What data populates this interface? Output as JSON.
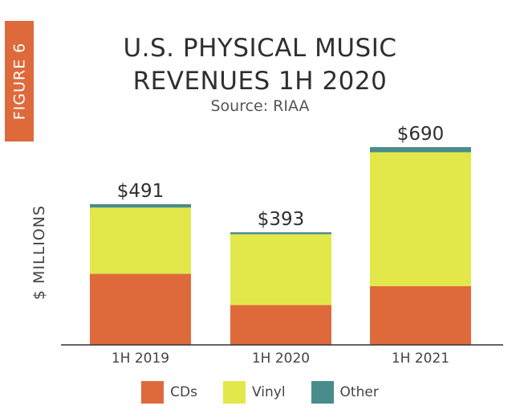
{
  "figure_label": "FIGURE 6",
  "chart_data": {
    "type": "bar",
    "stacked": true,
    "title_lines": [
      "U.S. PHYSICAL MUSIC",
      "REVENUES 1H 2020"
    ],
    "subtitle": "Source: RIAA",
    "xlabel": "",
    "ylabel": "$ MILLIONS",
    "categories": [
      "1H 2019",
      "1H 2020",
      "1H 2021"
    ],
    "totals": [
      491,
      393,
      690
    ],
    "total_labels": [
      "$491",
      "$393",
      "$690"
    ],
    "series": [
      {
        "name": "CDs",
        "values": [
          248,
          139,
          205
        ],
        "color": "#de6a3b"
      },
      {
        "name": "Vinyl",
        "values": [
          231,
          247,
          467
        ],
        "color": "#e2e84a"
      },
      {
        "name": "Other",
        "values": [
          12,
          7,
          18
        ],
        "color": "#4a8c8c"
      }
    ],
    "ylim": [
      0,
      690
    ],
    "grid": false,
    "legend_position": "bottom"
  }
}
